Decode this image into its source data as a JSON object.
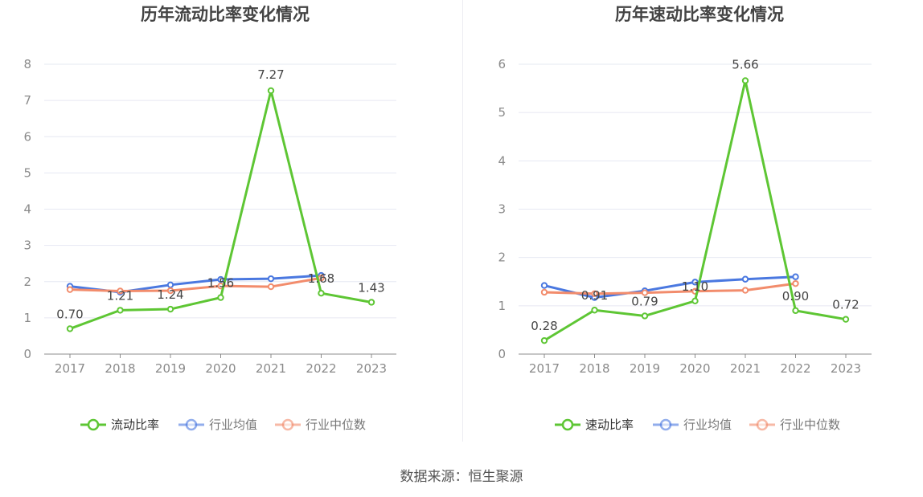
{
  "source": "数据来源：恒生聚源",
  "colors": {
    "main": "#5ec634",
    "avg": "#4a78e0",
    "median": "#f28c6c",
    "grid": "#e6e8f2",
    "axis": "#8c8c8c"
  },
  "chart_data": [
    {
      "type": "line",
      "title": "历年流动比率变化情况",
      "categories": [
        "2017",
        "2018",
        "2019",
        "2020",
        "2021",
        "2022",
        "2023"
      ],
      "ylim": [
        0,
        8
      ],
      "yticks": [
        0,
        1,
        2,
        3,
        4,
        5,
        6,
        7,
        8
      ],
      "grid": true,
      "legend_position": "bottom",
      "series": [
        {
          "name": "流动比率",
          "key": "main",
          "values": [
            0.7,
            1.21,
            1.24,
            1.56,
            7.27,
            1.68,
            1.43
          ],
          "labels": [
            "0.70",
            "1.21",
            "1.24",
            "1.56",
            "7.27",
            "1.68",
            "1.43"
          ]
        },
        {
          "name": "行业均值",
          "key": "avg",
          "values": [
            1.87,
            1.71,
            1.91,
            2.06,
            2.08,
            2.17,
            null
          ]
        },
        {
          "name": "行业中位数",
          "key": "median",
          "values": [
            1.78,
            1.74,
            1.75,
            1.88,
            1.86,
            2.1,
            null
          ]
        }
      ]
    },
    {
      "type": "line",
      "title": "历年速动比率变化情况",
      "categories": [
        "2017",
        "2018",
        "2019",
        "2020",
        "2021",
        "2022",
        "2023"
      ],
      "ylim": [
        0,
        6
      ],
      "yticks": [
        0,
        1,
        2,
        3,
        4,
        5,
        6
      ],
      "grid": true,
      "legend_position": "bottom",
      "series": [
        {
          "name": "速动比率",
          "key": "main",
          "values": [
            0.28,
            0.91,
            0.79,
            1.1,
            5.66,
            0.9,
            0.72
          ],
          "labels": [
            "0.28",
            "0.91",
            "0.79",
            "1.10",
            "5.66",
            "0.90",
            "0.72"
          ]
        },
        {
          "name": "行业均值",
          "key": "avg",
          "values": [
            1.42,
            1.17,
            1.31,
            1.49,
            1.55,
            1.6,
            null
          ]
        },
        {
          "name": "行业中位数",
          "key": "median",
          "values": [
            1.28,
            1.25,
            1.27,
            1.3,
            1.32,
            1.46,
            null
          ]
        }
      ]
    }
  ]
}
